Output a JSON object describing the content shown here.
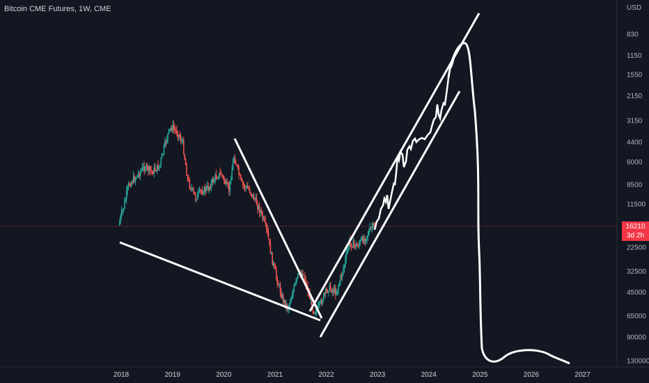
{
  "header": {
    "title": "Bitcoin CME Futures, 1W, CME",
    "currency": "USD"
  },
  "price_badge": {
    "price": "16210",
    "countdown": "3d 2h",
    "color": "#f23645"
  },
  "colors": {
    "background": "#131722",
    "up": "#26a69a",
    "down": "#ef5350",
    "drawing": "#ffffff"
  },
  "chart_data": {
    "type": "candlestick",
    "title": "Bitcoin CME Futures, 1W, CME",
    "y_axis": {
      "scale": "log",
      "inverted": true,
      "ticks": [
        "830",
        "1150",
        "1550",
        "2150",
        "3150",
        "4400",
        "6000",
        "8500",
        "11500",
        "22500",
        "32500",
        "45000",
        "65000",
        "90000",
        "130000"
      ]
    },
    "x_axis": {
      "ticks": [
        "2018",
        "2019",
        "2020",
        "2021",
        "2022",
        "2023",
        "2024",
        "2025",
        "2026",
        "2027"
      ]
    },
    "last_price": 16210,
    "grid": false
  }
}
